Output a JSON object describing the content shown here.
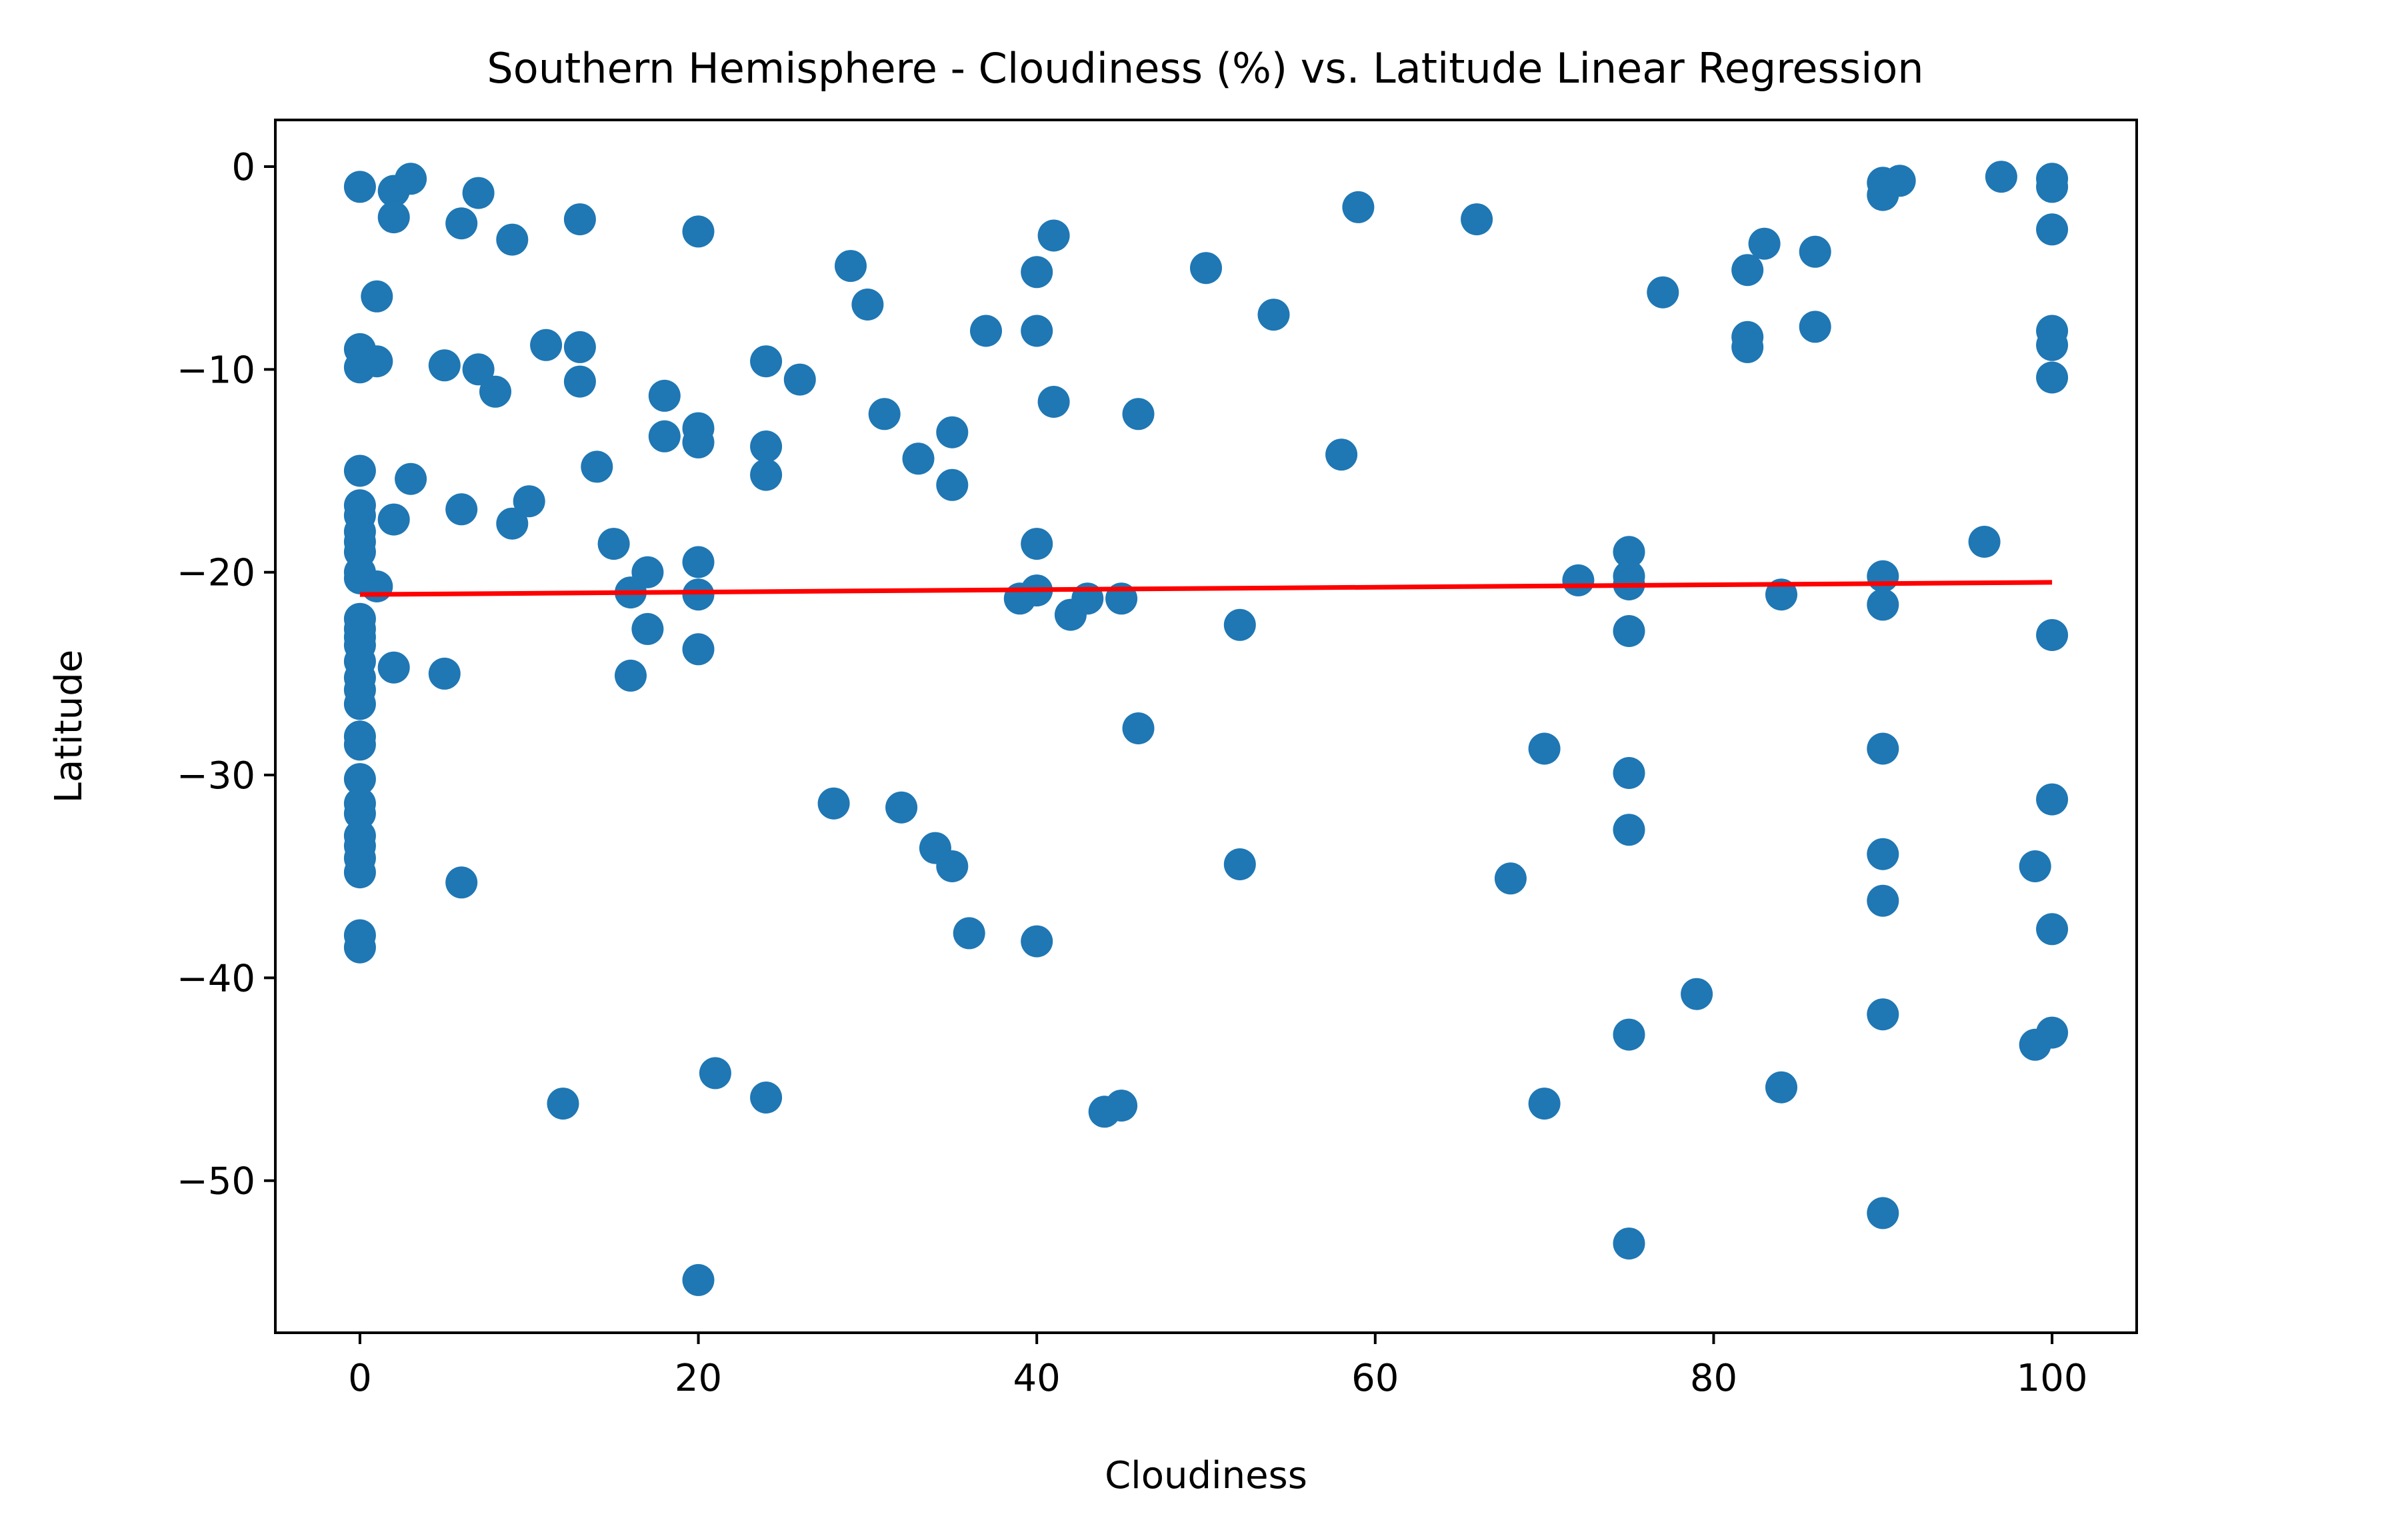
{
  "chart_data": {
    "type": "scatter",
    "title": "Southern Hemisphere - Cloudiness (%) vs. Latitude Linear Regression",
    "xlabel": "Cloudiness",
    "ylabel": "Latitude",
    "xlim": [
      -5,
      105
    ],
    "ylim": [
      -57.5,
      2.3
    ],
    "xticks": [
      0,
      20,
      40,
      60,
      80,
      100
    ],
    "yticks": [
      0,
      -10,
      -20,
      -30,
      -40,
      -50
    ],
    "xtick_labels": [
      "0",
      "20",
      "40",
      "60",
      "80",
      "100"
    ],
    "ytick_labels": [
      "0",
      "−10",
      "−20",
      "−30",
      "−40",
      "−50"
    ],
    "grid": false,
    "legend": "none",
    "marker_color": "#1f77b4",
    "line_color": "#ff0000",
    "regression_line": {
      "x": [
        0,
        100
      ],
      "y": [
        -21.1,
        -20.5
      ]
    },
    "points": [
      [
        0,
        -1.0
      ],
      [
        0,
        -9.0
      ],
      [
        0,
        -9.9
      ],
      [
        0,
        -15.0
      ],
      [
        0,
        -16.7
      ],
      [
        0,
        -17.2
      ],
      [
        0,
        -18.0
      ],
      [
        0,
        -18.5
      ],
      [
        0,
        -19.0
      ],
      [
        0,
        -20.0
      ],
      [
        0,
        -20.3
      ],
      [
        0,
        -22.3
      ],
      [
        0,
        -22.8
      ],
      [
        0,
        -23.2
      ],
      [
        0,
        -23.6
      ],
      [
        0,
        -24.4
      ],
      [
        0,
        -25.2
      ],
      [
        0,
        -25.8
      ],
      [
        0,
        -26.5
      ],
      [
        0,
        -28.1
      ],
      [
        0,
        -28.5
      ],
      [
        0,
        -30.2
      ],
      [
        0,
        -31.4
      ],
      [
        0,
        -31.9
      ],
      [
        0,
        -33.0
      ],
      [
        0,
        -33.5
      ],
      [
        0,
        -34.1
      ],
      [
        0,
        -34.8
      ],
      [
        0,
        -37.9
      ],
      [
        0,
        -38.5
      ],
      [
        1,
        -6.4
      ],
      [
        1,
        -9.6
      ],
      [
        1,
        -20.7
      ],
      [
        2,
        -1.2
      ],
      [
        2,
        -2.5
      ],
      [
        2,
        -17.4
      ],
      [
        2,
        -24.7
      ],
      [
        3,
        -0.6
      ],
      [
        3,
        -15.4
      ],
      [
        5,
        -9.8
      ],
      [
        5,
        -25.0
      ],
      [
        6,
        -2.8
      ],
      [
        6,
        -16.9
      ],
      [
        6,
        -35.3
      ],
      [
        7,
        -1.3
      ],
      [
        7,
        -10.0
      ],
      [
        8,
        -11.1
      ],
      [
        9,
        -3.6
      ],
      [
        9,
        -17.6
      ],
      [
        10,
        -16.5
      ],
      [
        11,
        -8.8
      ],
      [
        12,
        -46.2
      ],
      [
        13,
        -2.6
      ],
      [
        13,
        -8.9
      ],
      [
        13,
        -10.6
      ],
      [
        14,
        -14.8
      ],
      [
        15,
        -18.6
      ],
      [
        16,
        -21.0
      ],
      [
        16,
        -25.1
      ],
      [
        17,
        -20.0
      ],
      [
        17,
        -22.8
      ],
      [
        18,
        -11.3
      ],
      [
        18,
        -13.3
      ],
      [
        20,
        -3.2
      ],
      [
        20,
        -12.9
      ],
      [
        20,
        -13.6
      ],
      [
        20,
        -19.5
      ],
      [
        20,
        -21.1
      ],
      [
        20,
        -23.8
      ],
      [
        20,
        -54.9
      ],
      [
        21,
        -44.7
      ],
      [
        24,
        -9.6
      ],
      [
        24,
        -13.8
      ],
      [
        24,
        -15.2
      ],
      [
        24,
        -45.9
      ],
      [
        26,
        -10.5
      ],
      [
        28,
        -31.4
      ],
      [
        29,
        -4.9
      ],
      [
        30,
        -6.8
      ],
      [
        31,
        -12.2
      ],
      [
        32,
        -31.6
      ],
      [
        33,
        -14.4
      ],
      [
        34,
        -33.6
      ],
      [
        35,
        -13.1
      ],
      [
        35,
        -15.7
      ],
      [
        35,
        -34.5
      ],
      [
        36,
        -37.8
      ],
      [
        37,
        -8.1
      ],
      [
        39,
        -21.3
      ],
      [
        40,
        -5.2
      ],
      [
        40,
        -8.1
      ],
      [
        40,
        -18.6
      ],
      [
        40,
        -20.9
      ],
      [
        40,
        -38.2
      ],
      [
        41,
        -3.4
      ],
      [
        41,
        -11.6
      ],
      [
        42,
        -22.1
      ],
      [
        43,
        -21.3
      ],
      [
        44,
        -46.6
      ],
      [
        45,
        -21.3
      ],
      [
        45,
        -46.3
      ],
      [
        46,
        -12.2
      ],
      [
        46,
        -27.7
      ],
      [
        50,
        -5.0
      ],
      [
        52,
        -22.6
      ],
      [
        52,
        -34.4
      ],
      [
        54,
        -7.3
      ],
      [
        58,
        -14.2
      ],
      [
        59,
        -2.0
      ],
      [
        66,
        -2.6
      ],
      [
        68,
        -35.1
      ],
      [
        70,
        -28.7
      ],
      [
        70,
        -46.2
      ],
      [
        72,
        -20.4
      ],
      [
        75,
        -19.0
      ],
      [
        75,
        -20.2
      ],
      [
        75,
        -20.6
      ],
      [
        75,
        -22.9
      ],
      [
        75,
        -29.9
      ],
      [
        75,
        -32.7
      ],
      [
        75,
        -42.8
      ],
      [
        75,
        -53.1
      ],
      [
        77,
        -6.2
      ],
      [
        79,
        -40.8
      ],
      [
        82,
        -5.1
      ],
      [
        82,
        -8.4
      ],
      [
        82,
        -8.9
      ],
      [
        83,
        -3.8
      ],
      [
        84,
        -21.1
      ],
      [
        84,
        -45.4
      ],
      [
        86,
        -4.2
      ],
      [
        86,
        -7.9
      ],
      [
        90,
        -0.8
      ],
      [
        90,
        -1.4
      ],
      [
        90,
        -20.2
      ],
      [
        90,
        -21.6
      ],
      [
        90,
        -28.7
      ],
      [
        90,
        -33.9
      ],
      [
        90,
        -36.2
      ],
      [
        90,
        -41.8
      ],
      [
        90,
        -51.6
      ],
      [
        91,
        -0.7
      ],
      [
        96,
        -18.5
      ],
      [
        97,
        -0.5
      ],
      [
        99,
        -34.5
      ],
      [
        99,
        -43.3
      ],
      [
        100,
        -0.6
      ],
      [
        100,
        -1.0
      ],
      [
        100,
        -3.1
      ],
      [
        100,
        -8.1
      ],
      [
        100,
        -8.8
      ],
      [
        100,
        -10.4
      ],
      [
        100,
        -23.1
      ],
      [
        100,
        -31.2
      ],
      [
        100,
        -37.6
      ],
      [
        100,
        -42.7
      ]
    ]
  }
}
